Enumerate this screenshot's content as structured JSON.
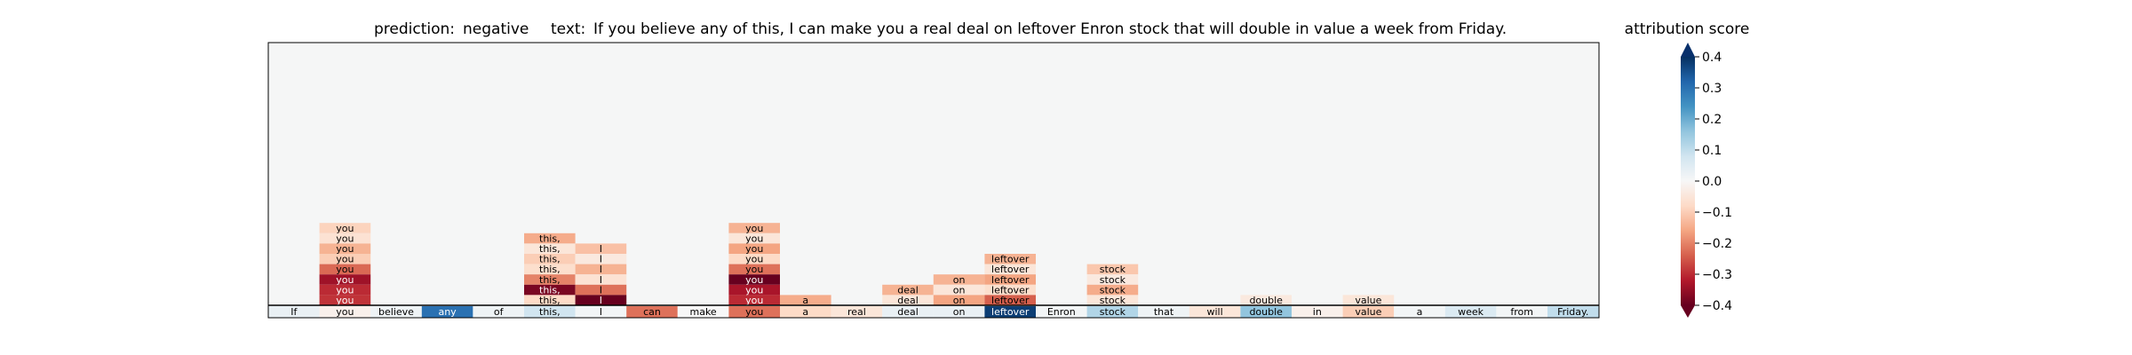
{
  "chart_data": {
    "type": "heatmap",
    "title_prediction_label": "prediction:",
    "title_prediction_value": "negative",
    "title_text_label": "text:",
    "title_text_value": "If you believe any of this, I can make you a real deal on leftover Enron stock that will double in value a week from Friday.",
    "colorbar_label": "attribution score",
    "colormap": "RdBu",
    "vmin": -0.4,
    "vmax": 0.4,
    "colorbar_ticks": [
      0.4,
      0.3,
      0.2,
      0.1,
      0.0,
      -0.1,
      -0.2,
      -0.3,
      -0.4
    ],
    "colorbar_tick_labels": [
      "0.4",
      "0.3",
      "0.2",
      "0.1",
      "0.0",
      "−0.1",
      "−0.2",
      "−0.3",
      "−0.4"
    ],
    "tokens": [
      "If",
      "you",
      "believe",
      "any",
      "of",
      "this,",
      "I",
      "can",
      "make",
      "you",
      "a",
      "real",
      "deal",
      "on",
      "leftover",
      "Enron",
      "stock",
      "that",
      "will",
      "double",
      "in",
      "value",
      "a",
      "week",
      "from",
      "Friday."
    ],
    "token_scores": [
      0.03,
      -0.02,
      0.02,
      0.3,
      0.02,
      0.08,
      0.01,
      -0.22,
      0.0,
      -0.22,
      -0.08,
      -0.05,
      0.03,
      0.03,
      0.38,
      0.01,
      0.12,
      0.02,
      -0.05,
      0.16,
      -0.02,
      -0.1,
      0.01,
      0.06,
      0.01,
      0.1
    ],
    "dependency_columns": [
      {
        "token_index": 1,
        "label": "you",
        "values": [
          -0.09,
          -0.06,
          -0.14,
          -0.1,
          -0.23,
          -0.34,
          -0.3,
          -0.29
        ]
      },
      {
        "token_index": 5,
        "label": "this,",
        "values": [
          -0.15,
          -0.05,
          -0.1,
          -0.07,
          -0.2,
          -0.38,
          -0.08
        ]
      },
      {
        "token_index": 6,
        "label": "I",
        "values": [
          -0.12,
          -0.04,
          -0.14,
          -0.06,
          -0.22,
          -0.4
        ]
      },
      {
        "token_index": 9,
        "label": "you",
        "values": [
          -0.14,
          -0.05,
          -0.16,
          -0.08,
          -0.22,
          -0.41,
          -0.33,
          -0.3
        ]
      },
      {
        "token_index": 10,
        "label": "a",
        "values": [
          -0.15
        ]
      },
      {
        "token_index": 12,
        "label": "deal",
        "values": [
          -0.14,
          -0.05
        ]
      },
      {
        "token_index": 13,
        "label": "on",
        "values": [
          -0.14,
          -0.05,
          -0.16
        ]
      },
      {
        "token_index": 14,
        "label": "leftover",
        "values": [
          -0.14,
          -0.05,
          -0.16,
          -0.07,
          -0.24
        ]
      },
      {
        "token_index": 16,
        "label": "stock",
        "values": [
          -0.11,
          -0.04,
          -0.15,
          -0.05
        ]
      },
      {
        "token_index": 19,
        "label": "double",
        "values": [
          -0.04
        ]
      },
      {
        "token_index": 21,
        "label": "value",
        "values": [
          -0.05
        ]
      }
    ]
  }
}
